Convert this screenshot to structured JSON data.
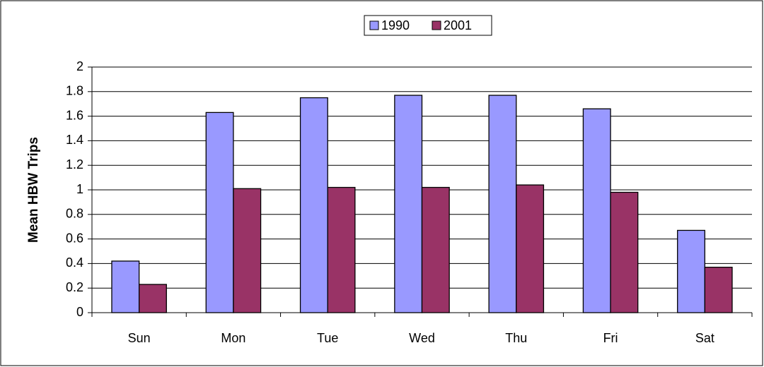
{
  "chart_data": {
    "type": "bar",
    "y_label": "Mean HBW Trips",
    "categories": [
      "Sun",
      "Mon",
      "Tue",
      "Wed",
      "Thu",
      "Fri",
      "Sat"
    ],
    "series": [
      {
        "name": "1990",
        "color": "#9999ff",
        "values": [
          0.42,
          1.63,
          1.75,
          1.77,
          1.77,
          1.66,
          0.67
        ]
      },
      {
        "name": "2001",
        "color": "#993366",
        "values": [
          0.23,
          1.01,
          1.02,
          1.02,
          1.04,
          0.98,
          0.37
        ]
      }
    ],
    "ylim": [
      0,
      2
    ],
    "yticks": [
      0,
      0.2,
      0.4,
      0.6,
      0.8,
      1,
      1.2,
      1.4,
      1.6,
      1.8,
      2
    ],
    "grid": true,
    "legend": "top"
  }
}
